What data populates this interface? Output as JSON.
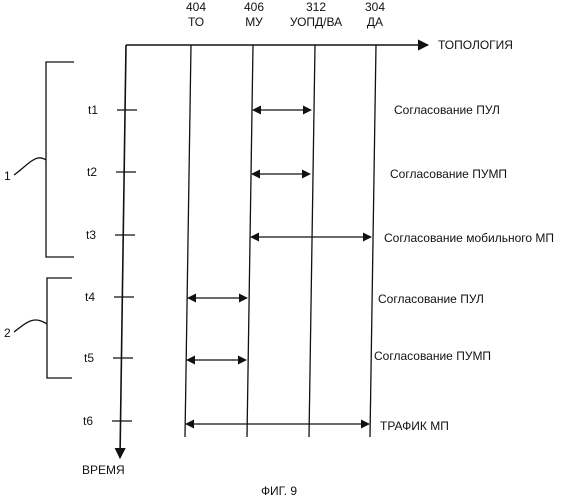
{
  "axes": {
    "topology_label": "ТОПОЛОГИЯ",
    "time_label": "ВРЕМЯ"
  },
  "entities": [
    {
      "number": "404",
      "name": "ТО"
    },
    {
      "number": "406",
      "name": "МУ"
    },
    {
      "number": "312",
      "name": "УОПД/ВА"
    },
    {
      "number": "304",
      "name": "ДА"
    }
  ],
  "times": [
    "t1",
    "t2",
    "t3",
    "t4",
    "t5",
    "t6"
  ],
  "messages": [
    "Согласование ПУЛ",
    "Согласование ПУМП",
    "Согласование мобильного МП",
    "Согласование  ПУЛ",
    "Согласование  ПУМП",
    "ТРАФИК  МП"
  ],
  "groups": [
    {
      "label": "1"
    },
    {
      "label": "2"
    }
  ],
  "caption": "ФИГ. 9"
}
